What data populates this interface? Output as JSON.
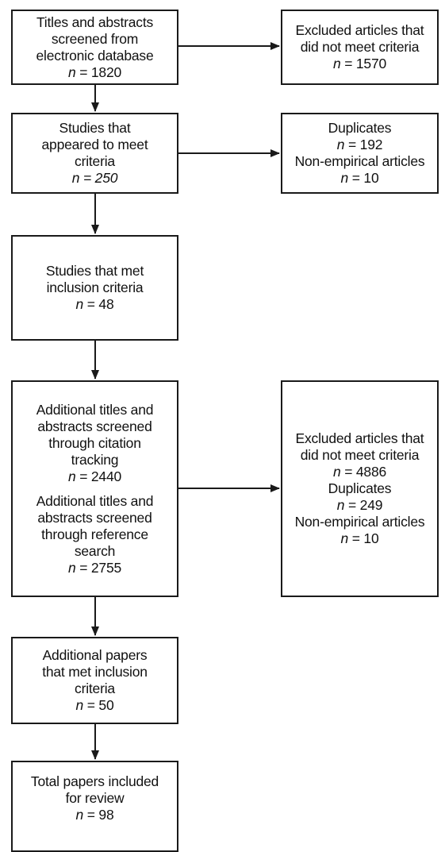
{
  "flow": {
    "screened_db": {
      "lines": [
        "Titles and abstracts",
        "screened from",
        "electronic database"
      ],
      "n": "1820"
    },
    "appeared_to_meet": {
      "lines": [
        "Studies that",
        "appeared to meet",
        "criteria"
      ],
      "n": "250"
    },
    "met_inclusion": {
      "lines": [
        "Studies that met",
        "inclusion criteria"
      ],
      "n": "48"
    },
    "additional_citation": {
      "lines": [
        "Additional titles and",
        "abstracts screened",
        "through citation",
        "tracking"
      ],
      "n": "2440"
    },
    "additional_reference": {
      "lines": [
        "Additional titles and",
        "abstracts screened",
        "through reference",
        "search"
      ],
      "n": "2755"
    },
    "additional_papers": {
      "lines": [
        "Additional papers",
        "that met inclusion",
        "criteria"
      ],
      "n": "50"
    },
    "total_included": {
      "lines": [
        "Total papers included",
        "for review"
      ],
      "n": "98"
    }
  },
  "exclusions": {
    "first": {
      "lines": [
        "Excluded articles that",
        "did not meet criteria"
      ],
      "n": "1570"
    },
    "second": {
      "duplicates_label": "Duplicates",
      "duplicates_n": "192",
      "nonempirical_label": "Non-empirical articles",
      "nonempirical_n": "10"
    },
    "third": {
      "excluded_lines": [
        "Excluded articles that",
        "did not meet criteria"
      ],
      "excluded_n": "4886",
      "duplicates_label": "Duplicates",
      "duplicates_n": "249",
      "nonempirical_label": "Non-empirical articles",
      "nonempirical_n": "10"
    }
  },
  "labels": {
    "n_symbol": "n",
    "equals": "="
  },
  "colors": {
    "line": "#1a1a1a",
    "box_border": "#1a1a1a",
    "text": "#111111",
    "background": "#ffffff"
  }
}
